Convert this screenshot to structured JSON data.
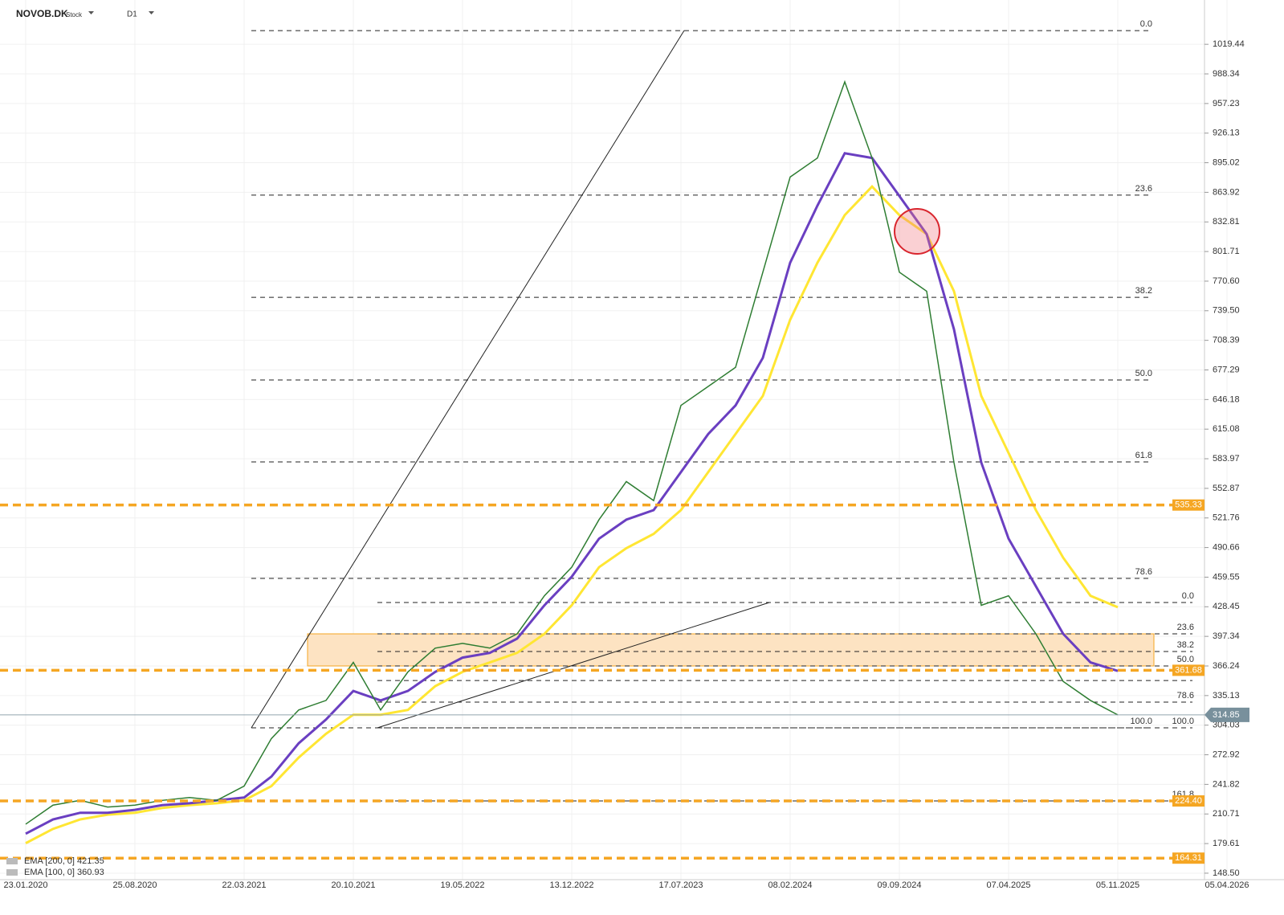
{
  "chart_data": {
    "type": "line",
    "title": "NOVOB.DK",
    "subtitle": "Stock",
    "timeframe": "D1",
    "categories": [
      "23.01.2020",
      null,
      null,
      null,
      "25.08.2020",
      null,
      null,
      null,
      "22.03.2021",
      null,
      null,
      null,
      "20.10.2021",
      null,
      null,
      null,
      "19.05.2022",
      null,
      null,
      null,
      "13.12.2022",
      null,
      null,
      null,
      "17.07.2023",
      null,
      null,
      null,
      "08.02.2024",
      null,
      null,
      null,
      "09.09.2024",
      null,
      null,
      null,
      "07.04.2025",
      null,
      null,
      null,
      "05.11.2025",
      null,
      null,
      null,
      "05.04.2026"
    ],
    "values": [
      200,
      220,
      225,
      218,
      220,
      225,
      228,
      225,
      240,
      290,
      320,
      330,
      370,
      320,
      360,
      385,
      390,
      385,
      400,
      440,
      470,
      520,
      560,
      540,
      640,
      660,
      680,
      780,
      880,
      900,
      980,
      900,
      780,
      760,
      580,
      430,
      440,
      400,
      350,
      330,
      314.85,
      null,
      null,
      null,
      null
    ],
    "color": "#2e7d32",
    "series": [
      {
        "name": "EMA [200, 0] 421.35",
        "color": "#ffe633",
        "values": [
          180,
          195,
          205,
          210,
          212,
          217,
          220,
          222,
          225,
          240,
          270,
          295,
          315,
          315,
          320,
          345,
          360,
          370,
          380,
          400,
          430,
          470,
          490,
          505,
          530,
          570,
          610,
          650,
          730,
          790,
          840,
          870,
          840,
          820,
          760,
          650,
          590,
          530,
          480,
          440,
          428,
          null,
          null,
          null,
          null
        ]
      },
      {
        "name": "EMA [100, 0] 360.93",
        "color": "#6a3fc1",
        "values": [
          190,
          205,
          212,
          212,
          215,
          220,
          222,
          225,
          228,
          250,
          285,
          310,
          340,
          330,
          340,
          360,
          375,
          380,
          395,
          430,
          460,
          500,
          520,
          530,
          570,
          610,
          640,
          690,
          790,
          850,
          905,
          900,
          860,
          820,
          720,
          580,
          500,
          450,
          400,
          370,
          361,
          null,
          null,
          null,
          null
        ]
      }
    ],
    "ylim": [
      141.7,
      1066
    ],
    "yticks": [
      1019.44,
      988.34,
      957.23,
      926.13,
      895.02,
      863.92,
      832.81,
      801.71,
      {
        "value": 770.6,
        "label": "770.60"
      },
      {
        "value": 739.5,
        "label": "739.50"
      },
      708.39,
      677.29,
      646.18,
      615.08,
      583.97,
      552.87,
      521.76,
      490.66,
      459.55,
      428.45,
      397.34,
      366.24,
      335.13,
      304.03,
      272.92,
      241.82,
      210.71,
      179.61,
      {
        "value": 148.5,
        "label": "148.50"
      }
    ],
    "levels": [
      535.33,
      361.68,
      {
        "value": 224.4,
        "label": "224.40"
      },
      164.31
    ],
    "last_price": 314.85,
    "fib_sets": [
      [
        {
          "label": "0.0",
          "value": 1033.8
        },
        {
          "label": "23.6",
          "value": 861
        },
        {
          "label": "38.2",
          "value": 753.6
        },
        {
          "label": "50.0",
          "value": 666.7
        },
        {
          "label": "61.8",
          "value": 580.6
        },
        {
          "label": "78.6",
          "value": 458.2
        },
        {
          "label": "100.0",
          "value": 301.2
        }
      ],
      [
        {
          "label": "0.0",
          "value": 432.9
        },
        {
          "label": "23.6",
          "value": 400
        },
        {
          "label": "38.2",
          "value": 381.4
        },
        {
          "label": "50.0",
          "value": 366.2
        },
        {
          "value": 350.9
        },
        {
          "label": "78.6",
          "value": 328.2
        },
        {
          "label": "100.0",
          "value": 301.2
        },
        {
          "label": "161.8",
          "value": 224.4
        }
      ]
    ],
    "grid": true
  }
}
